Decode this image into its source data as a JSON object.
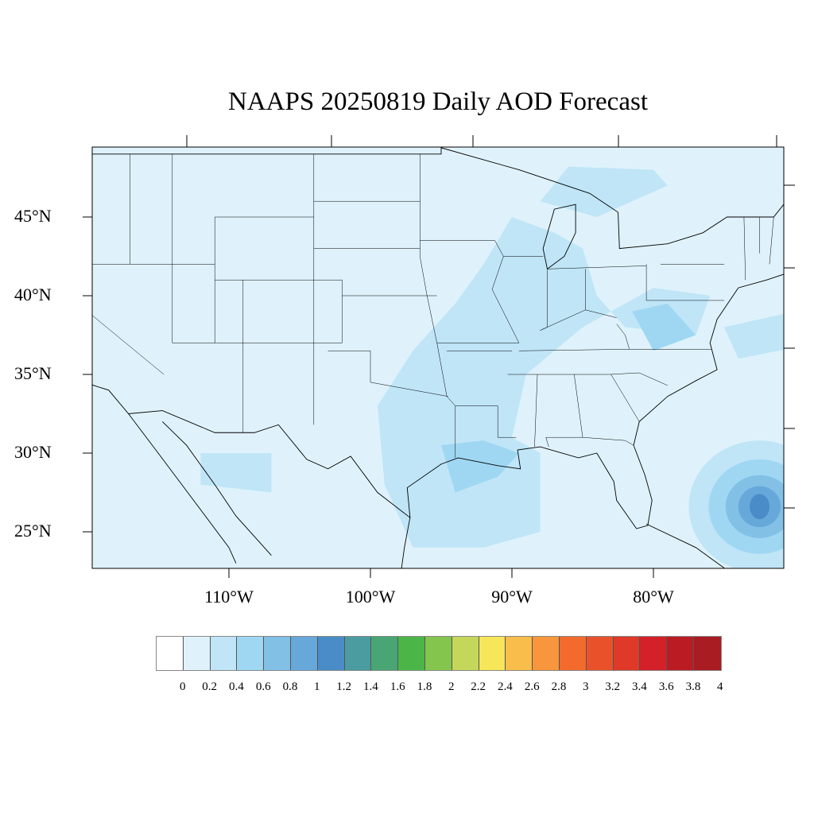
{
  "title": "NAAPS 20250819 Daily AOD Forecast",
  "lat_labels": [
    "45°N",
    "40°N",
    "35°N",
    "30°N",
    "25°N"
  ],
  "lon_labels": [
    "110°W",
    "100°W",
    "90°W",
    "80°W"
  ],
  "colorbar": {
    "labels": [
      "0",
      "0.2",
      "0.4",
      "0.6",
      "0.8",
      "1",
      "1.2",
      "1.4",
      "1.6",
      "1.8",
      "2",
      "2.2",
      "2.4",
      "2.6",
      "2.8",
      "3",
      "3.2",
      "3.4",
      "3.6",
      "3.8",
      "4"
    ],
    "colors": [
      "#ffffff",
      "#dff2fb",
      "#bfe5f7",
      "#9fd7f3",
      "#82c0e6",
      "#67a8da",
      "#4a8cc8",
      "#4a9ca0",
      "#49a674",
      "#4bb647",
      "#84c54d",
      "#c4d75a",
      "#f7e65a",
      "#f8bd4b",
      "#f7963c",
      "#f26b2c",
      "#e9512b",
      "#df3a28",
      "#d42129",
      "#bb1c24",
      "#a81c22",
      "#921a1d"
    ]
  },
  "map_colors": {
    "background": "#dff2fb",
    "level1": "#bfe5f7",
    "level2": "#9fd7f3",
    "level3": "#82c0e6",
    "level4": "#67a8da",
    "level5": "#4a8cc8"
  }
}
